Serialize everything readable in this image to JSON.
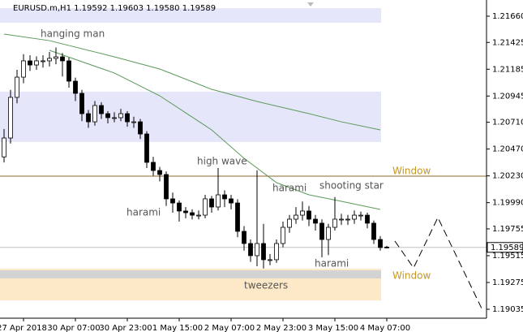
{
  "chart_data": {
    "type": "candlestick",
    "title": "EURUSD.m,H1  1.19592 1.19603 1.19580 1.19589",
    "categories": [
      null,
      null,
      null,
      "27 Apr 2018",
      null,
      null,
      null,
      null,
      null,
      null,
      null,
      "30 Apr 07:00",
      null,
      null,
      null,
      null,
      null,
      null,
      null,
      "30 Apr 23:00",
      null,
      null,
      null,
      null,
      null,
      null,
      null,
      "1 May 15:00",
      null,
      null,
      null,
      null,
      null,
      null,
      null,
      "2 May 07:00",
      null,
      null,
      null,
      null,
      null,
      null,
      null,
      "2 May 23:00",
      null,
      null,
      null,
      null,
      null,
      null,
      null,
      "3 May 15:00",
      null,
      null,
      null,
      null,
      null,
      null,
      null,
      "4 May 07:00"
    ],
    "open": [
      1.204,
      1.20569,
      1.20933,
      1.21114,
      1.2126,
      1.21223,
      1.2126,
      1.2126,
      1.21282,
      1.21296,
      1.2126,
      1.21078,
      1.20969,
      1.20787,
      1.20714,
      1.2086,
      1.20787,
      1.20751,
      1.20751,
      1.20787,
      1.20714,
      1.20714,
      1.20605,
      1.20351,
      1.20278,
      1.20242,
      1.20024,
      1.19987,
      1.19915,
      1.199,
      1.19878,
      1.19878,
      1.20024,
      1.19951,
      1.2006,
      1.20024,
      1.19987,
      1.19733,
      1.19624,
      1.19515,
      1.19624,
      1.19479,
      1.19479,
      1.19624,
      1.19769,
      1.19842,
      1.19878,
      1.19915,
      1.19842,
      1.19806,
      1.1966,
      1.19769,
      1.19842,
      1.19842,
      1.19842,
      1.19878,
      1.19878,
      1.19806,
      1.1966,
      1.19592
    ],
    "high": [
      1.2065,
      1.21,
      1.2118,
      1.2132,
      1.2131,
      1.213,
      1.2131,
      1.2134,
      1.2138,
      1.2133,
      1.2129,
      1.2111,
      1.21,
      1.2082,
      1.209,
      1.2089,
      1.2081,
      1.208,
      1.2083,
      1.2081,
      1.2076,
      1.2074,
      1.2063,
      1.204,
      1.2031,
      1.2027,
      1.2008,
      1.2001,
      1.1995,
      1.1993,
      1.1992,
      1.2006,
      1.2005,
      1.203,
      1.201,
      1.2006,
      1.2002,
      1.1978,
      1.1966,
      1.2028,
      1.198,
      1.1953,
      1.1966,
      1.1982,
      1.1988,
      1.1995,
      1.2,
      1.1996,
      1.1988,
      1.1984,
      1.198,
      1.2004,
      1.1989,
      1.1988,
      1.1992,
      1.1991,
      1.199,
      1.1983,
      1.1969,
      1.19603
    ],
    "low": [
      1.2035,
      1.2052,
      1.2088,
      1.2106,
      1.2117,
      1.2118,
      1.212,
      1.2121,
      1.2123,
      1.2112,
      1.2102,
      1.209,
      1.2072,
      1.2066,
      1.2068,
      1.2074,
      1.207,
      1.2071,
      1.2072,
      1.2067,
      1.2066,
      1.2056,
      1.203,
      1.2023,
      1.2018,
      1.1996,
      1.199,
      1.1982,
      1.1985,
      1.1984,
      1.1984,
      1.1985,
      1.199,
      1.1992,
      1.1995,
      1.1993,
      1.1968,
      1.1956,
      1.1946,
      1.1942,
      1.194,
      1.1943,
      1.1945,
      1.1959,
      1.1972,
      1.198,
      1.1983,
      1.1978,
      1.1974,
      1.195,
      1.1952,
      1.1974,
      1.1979,
      1.1979,
      1.198,
      1.1983,
      1.1976,
      1.1962,
      1.1956,
      1.1958
    ],
    "close": [
      1.20569,
      1.20933,
      1.21114,
      1.2126,
      1.21223,
      1.2126,
      1.2126,
      1.21282,
      1.21296,
      1.2126,
      1.21078,
      1.20969,
      1.20787,
      1.20714,
      1.2086,
      1.20787,
      1.20751,
      1.20751,
      1.20787,
      1.20714,
      1.20714,
      1.20605,
      1.20351,
      1.20278,
      1.20242,
      1.20024,
      1.19987,
      1.19915,
      1.199,
      1.19878,
      1.19878,
      1.20024,
      1.19951,
      1.2006,
      1.20024,
      1.19987,
      1.19733,
      1.19624,
      1.19515,
      1.19624,
      1.19479,
      1.19479,
      1.19624,
      1.19769,
      1.19842,
      1.19878,
      1.19915,
      1.19842,
      1.19806,
      1.1966,
      1.19769,
      1.19842,
      1.19842,
      1.19842,
      1.19878,
      1.19878,
      1.19806,
      1.1966,
      1.19588,
      1.19589
    ],
    "up_color": "#ffffff",
    "down_color": "#000000",
    "ylim": [
      1.18955,
      1.21805
    ],
    "yticks": [
      {
        "value": 1.2166,
        "label": "1.21660"
      },
      1.21425,
      1.21185,
      1.20945,
      {
        "value": 1.2071,
        "label": "1.20710"
      },
      {
        "value": 1.2047,
        "label": "1.20470"
      },
      {
        "value": 1.2023,
        "label": "1.20230"
      },
      {
        "value": 1.1999,
        "label": "1.19990"
      },
      1.19755,
      1.19515,
      1.19275,
      1.19035
    ],
    "lines": [
      {
        "color": "#5a9a5a",
        "x": [
          0,
          7,
          17,
          24,
          32,
          39,
          47,
          52,
          58
        ],
        "values": [
          1.215,
          1.21441,
          1.21296,
          1.21187,
          1.21005,
          1.20896,
          1.20787,
          1.20714,
          1.20642
        ]
      },
      {
        "color": "#5a9a5a",
        "x": [
          7,
          17,
          24,
          32,
          37,
          42,
          47,
          52,
          58
        ],
        "values": [
          1.21354,
          1.21151,
          1.20947,
          1.20642,
          1.20387,
          1.20169,
          1.2006,
          1.20002,
          1.19929
        ]
      }
    ],
    "zones": [
      {
        "range": [
          1.21601,
          1.21732
        ],
        "color": "#e6e6fa"
      },
      {
        "range": [
          1.20533,
          1.20984
        ],
        "color": "#e6e6fa"
      },
      {
        "range": [
          1.19114,
          1.19398
        ],
        "color": "#fde9c8"
      },
      {
        "range": [
          1.19311,
          1.19384
        ],
        "color": "#d3d3d3"
      }
    ],
    "levels": [
      {
        "value": 1.20227,
        "color": "#8b6b2e"
      }
    ],
    "annotations": [
      {
        "text": "hanging man",
        "color": "#555555"
      },
      {
        "text": "high wave",
        "color": "#555555"
      },
      {
        "text": "harami",
        "color": "#555555"
      },
      {
        "text": "harami",
        "color": "#555555"
      },
      {
        "text": "shooting star",
        "color": "#555555"
      },
      {
        "text": "harami",
        "color": "#555555"
      },
      {
        "text": "tweezers",
        "color": "#555555"
      },
      {
        "text": "Window",
        "color": "#c8961e"
      },
      {
        "text": "Window",
        "color": "#c8961e"
      }
    ]
  }
}
